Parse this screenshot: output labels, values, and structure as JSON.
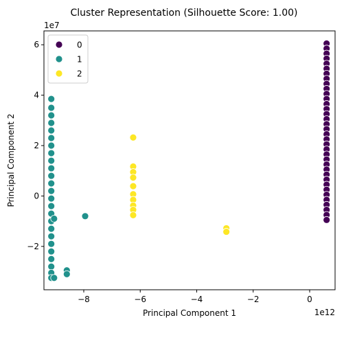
{
  "chart_data": {
    "type": "scatter",
    "title": "Cluster Representation (Silhouette Score: 1.00)",
    "xlabel": "Principal Component 1",
    "ylabel": "Principal Component 2",
    "x_offset_text": "1e12",
    "y_offset_text": "1e7",
    "xlim": [
      -9.41,
      0.9
    ],
    "ylim": [
      -3.72,
      6.55
    ],
    "x_ticks": [
      -8,
      -6,
      -4,
      -2,
      0
    ],
    "x_tick_labels": [
      "−8",
      "−6",
      "−4",
      "−2",
      "0"
    ],
    "y_ticks": [
      -2,
      0,
      2,
      4,
      6
    ],
    "y_tick_labels": [
      "−2",
      "0",
      "2",
      "4",
      "6"
    ],
    "grid": false,
    "legend": {
      "placement": "top-left"
    },
    "series": [
      {
        "name": "0",
        "color": "#440154",
        "points": [
          [
            0.6,
            6.05
          ],
          [
            0.6,
            5.85
          ],
          [
            0.6,
            5.65
          ],
          [
            0.6,
            5.45
          ],
          [
            0.6,
            5.25
          ],
          [
            0.6,
            5.05
          ],
          [
            0.6,
            4.85
          ],
          [
            0.6,
            4.65
          ],
          [
            0.6,
            4.45
          ],
          [
            0.6,
            4.25
          ],
          [
            0.6,
            4.05
          ],
          [
            0.6,
            3.85
          ],
          [
            0.6,
            3.65
          ],
          [
            0.6,
            3.45
          ],
          [
            0.6,
            3.25
          ],
          [
            0.6,
            3.05
          ],
          [
            0.6,
            2.85
          ],
          [
            0.6,
            2.65
          ],
          [
            0.6,
            2.45
          ],
          [
            0.6,
            2.25
          ],
          [
            0.6,
            2.05
          ],
          [
            0.6,
            1.85
          ],
          [
            0.6,
            1.65
          ],
          [
            0.6,
            1.45
          ],
          [
            0.6,
            1.25
          ],
          [
            0.6,
            1.05
          ],
          [
            0.6,
            0.85
          ],
          [
            0.6,
            0.65
          ],
          [
            0.6,
            0.45
          ],
          [
            0.6,
            0.25
          ],
          [
            0.6,
            0.05
          ],
          [
            0.6,
            -0.15
          ],
          [
            0.6,
            -0.35
          ],
          [
            0.6,
            -0.55
          ],
          [
            0.6,
            -0.75
          ],
          [
            0.6,
            -0.95
          ]
        ]
      },
      {
        "name": "1",
        "color": "#21918c",
        "points": [
          [
            -9.15,
            3.85
          ],
          [
            -9.15,
            3.5
          ],
          [
            -9.15,
            3.2
          ],
          [
            -9.15,
            2.9
          ],
          [
            -9.15,
            2.6
          ],
          [
            -9.15,
            2.3
          ],
          [
            -9.15,
            2.0
          ],
          [
            -9.15,
            1.7
          ],
          [
            -9.15,
            1.4
          ],
          [
            -9.15,
            1.1
          ],
          [
            -9.15,
            0.8
          ],
          [
            -9.15,
            0.5
          ],
          [
            -9.15,
            0.2
          ],
          [
            -9.15,
            -0.1
          ],
          [
            -9.15,
            -0.4
          ],
          [
            -9.15,
            -0.7
          ],
          [
            -9.15,
            -1.0
          ],
          [
            -9.15,
            -1.3
          ],
          [
            -9.15,
            -1.6
          ],
          [
            -9.15,
            -1.9
          ],
          [
            -9.15,
            -2.2
          ],
          [
            -9.15,
            -2.5
          ],
          [
            -9.15,
            -2.8
          ],
          [
            -9.15,
            -3.05
          ],
          [
            -9.15,
            -3.25
          ],
          [
            -9.05,
            -3.25
          ],
          [
            -9.05,
            -0.9
          ],
          [
            -8.6,
            -2.95
          ],
          [
            -8.6,
            -3.1
          ],
          [
            -7.95,
            -0.8
          ]
        ]
      },
      {
        "name": "2",
        "color": "#fde725",
        "points": [
          [
            -6.25,
            2.32
          ],
          [
            -6.25,
            1.17
          ],
          [
            -6.25,
            0.95
          ],
          [
            -6.25,
            0.73
          ],
          [
            -6.25,
            0.39
          ],
          [
            -6.25,
            0.07
          ],
          [
            -6.25,
            -0.15
          ],
          [
            -6.25,
            -0.38
          ],
          [
            -6.25,
            -0.55
          ],
          [
            -6.25,
            -0.76
          ],
          [
            -2.95,
            -1.28
          ],
          [
            -2.95,
            -1.42
          ]
        ]
      }
    ]
  }
}
